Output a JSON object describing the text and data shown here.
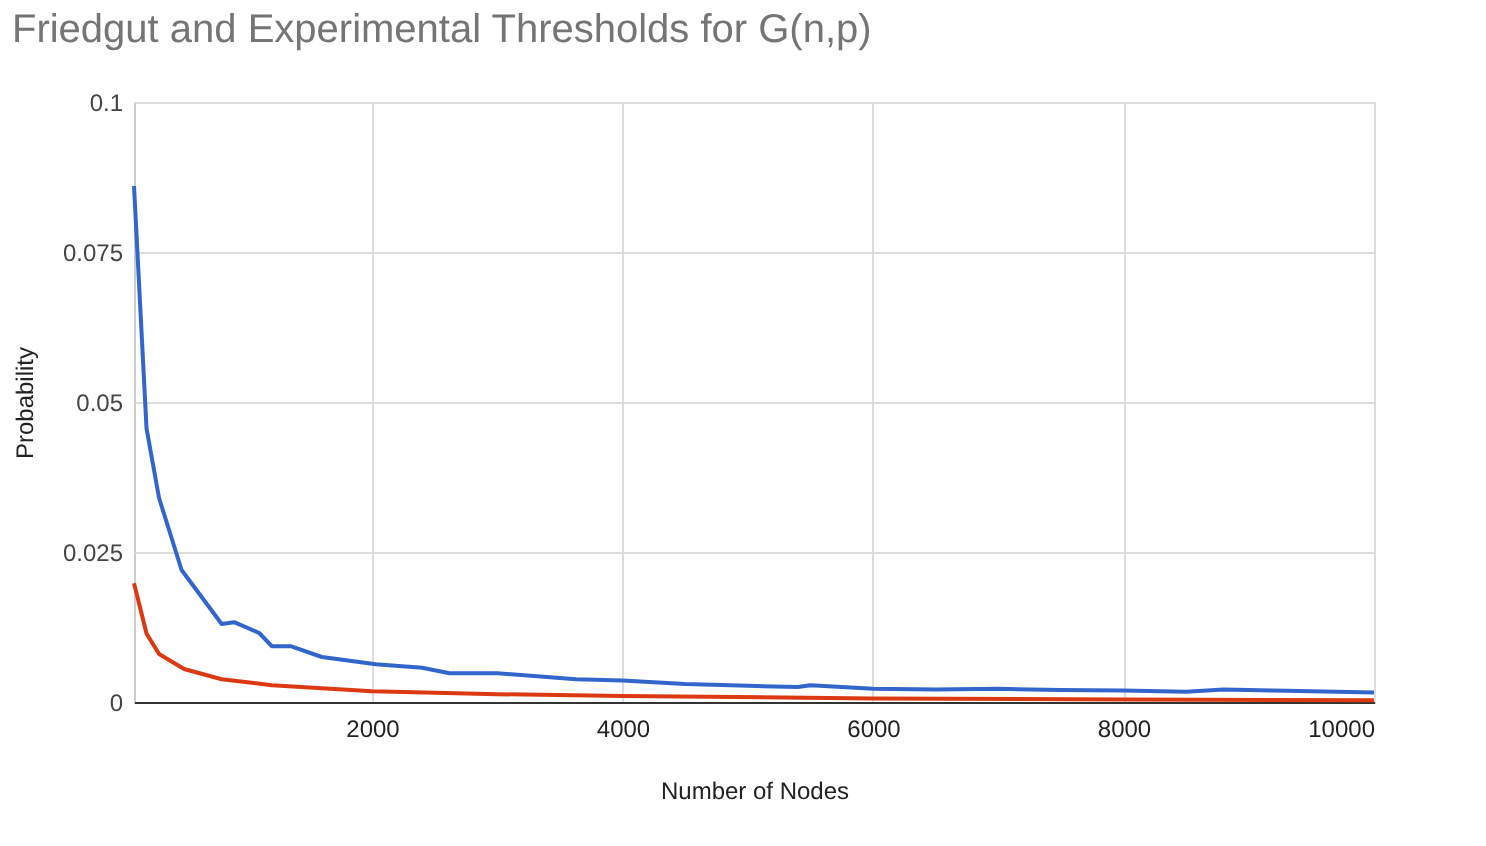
{
  "chart_data": {
    "type": "line",
    "title": "Friedgut and Experimental Thresholds for G(n,p)",
    "xlabel": "Number of Nodes",
    "ylabel": "Probability",
    "xlim": [
      100,
      10000
    ],
    "xticks": [
      2000,
      4000,
      6000,
      8000,
      10000
    ],
    "ylim": [
      0,
      0.1
    ],
    "yticks": [
      0,
      0.025,
      0.05,
      0.075,
      0.1
    ],
    "grid": true,
    "legend": false,
    "series": [
      {
        "color": "#3366cc",
        "x": [
          100,
          200,
          300,
          480,
          800,
          900,
          1100,
          1200,
          1350,
          1600,
          2030,
          2400,
          2620,
          3000,
          3630,
          4000,
          4500,
          5000,
          5400,
          5500,
          6000,
          6500,
          7000,
          7500,
          8000,
          8500,
          8800,
          9200,
          10000
        ],
        "values": [
          0.086,
          0.0456,
          0.034,
          0.022,
          0.013,
          0.0133,
          0.0115,
          0.0093,
          0.0093,
          0.0075,
          0.0063,
          0.0057,
          0.0048,
          0.0048,
          0.0038,
          0.0036,
          0.003,
          0.0027,
          0.0025,
          0.0028,
          0.0022,
          0.0021,
          0.0022,
          0.002,
          0.0019,
          0.0017,
          0.0021,
          0.0019,
          0.0016
        ]
      },
      {
        "color": "#dc3912",
        "x": [
          100,
          200,
          300,
          500,
          800,
          1200,
          2000,
          3000,
          4000,
          6000,
          8000,
          10000
        ],
        "values": [
          0.0198,
          0.0114,
          0.008,
          0.0055,
          0.0038,
          0.0028,
          0.0018,
          0.0013,
          0.001,
          0.0006,
          0.0004,
          0.0003
        ]
      }
    ]
  }
}
